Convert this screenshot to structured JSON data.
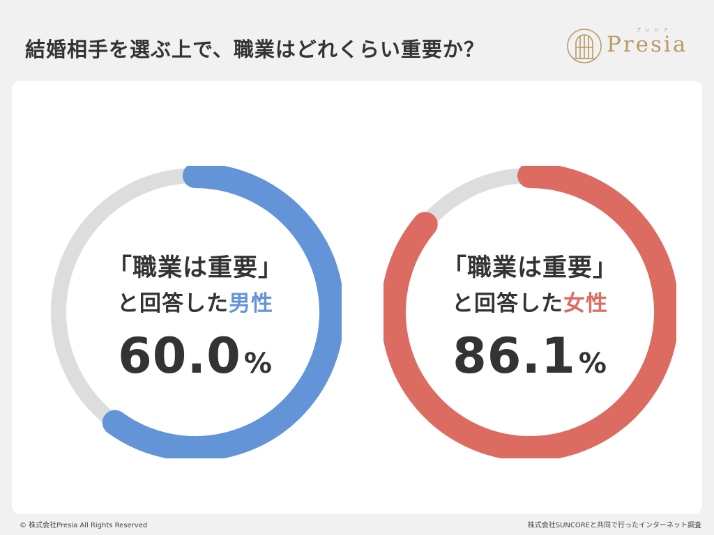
{
  "header": {
    "title": "結婚相手を選ぶ上で、職業はどれくらい重要か？"
  },
  "logo": {
    "name": "Presia",
    "kana": "プレシア"
  },
  "chart_data": {
    "type": "pie",
    "charts": [
      {
        "line1": "「職業は重要」",
        "line2_prefix": "と回答した",
        "line2_highlight": "男性",
        "value": 60.0,
        "value_text": "60.0",
        "unit": "%",
        "color": "#6394d8",
        "track_color": "#dddddd"
      },
      {
        "line1": "「職業は重要」",
        "line2_prefix": "と回答した",
        "line2_highlight": "女性",
        "value": 86.1,
        "value_text": "86.1",
        "unit": "%",
        "color": "#dc6c62",
        "track_color": "#dddddd"
      }
    ]
  },
  "footer": {
    "copyright": "© 株式会社Presia All Rights Reserved",
    "source": "株式会社SUNCOREと共同で行ったインターネット調査"
  }
}
